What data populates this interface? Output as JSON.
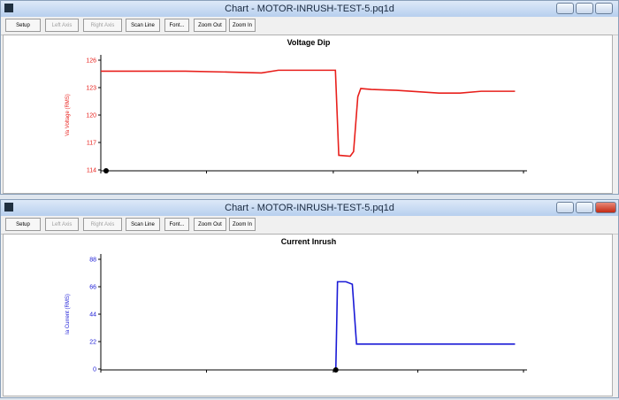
{
  "windows": [
    {
      "title": "Chart - MOTOR-INRUSH-TEST-5.pq1d",
      "buttons": [
        {
          "label": "Setup",
          "enabled": true
        },
        {
          "label": "Left Axis",
          "enabled": false
        },
        {
          "label": "Right Axis",
          "enabled": false
        },
        {
          "label": "Scan Line",
          "enabled": true
        },
        {
          "label": "Font...",
          "enabled": true
        },
        {
          "label": "Zoom Out",
          "enabled": true
        },
        {
          "label": "Zoom In",
          "enabled": true
        }
      ]
    },
    {
      "title": "Chart - MOTOR-INRUSH-TEST-5.pq1d",
      "buttons": [
        {
          "label": "Setup",
          "enabled": true
        },
        {
          "label": "Left Axis",
          "enabled": false
        },
        {
          "label": "Right Axis",
          "enabled": false
        },
        {
          "label": "Scan Line",
          "enabled": true
        },
        {
          "label": "Font...",
          "enabled": true
        },
        {
          "label": "Zoom Out",
          "enabled": true
        },
        {
          "label": "Zoom In",
          "enabled": true
        }
      ]
    }
  ],
  "chart_data": [
    {
      "type": "line",
      "title": "Voltage Dip",
      "y_label": "Va Voltage (RMS)",
      "ylim": [
        114,
        126
      ],
      "yticks": [
        114,
        117,
        120,
        123,
        126
      ],
      "xlim": [
        0,
        100
      ],
      "series": [
        {
          "name": "Va Voltage (RMS)",
          "color": "#e8201c",
          "x": [
            0,
            10,
            20,
            30,
            38,
            42,
            48,
            55.5,
            56.3,
            59,
            59.8,
            60.8,
            61.5,
            64,
            70,
            80,
            85,
            90,
            98
          ],
          "values": [
            124.8,
            124.8,
            124.8,
            124.7,
            124.6,
            124.9,
            124.9,
            124.9,
            115.6,
            115.5,
            116,
            122,
            122.9,
            122.8,
            122.7,
            122.4,
            122.4,
            122.6,
            122.6
          ]
        }
      ]
    },
    {
      "type": "line",
      "title": "Current Inrush",
      "y_label": "Ia Current (RMS)",
      "ylim": [
        0,
        88
      ],
      "yticks": [
        0,
        22,
        44,
        66,
        88
      ],
      "xlim": [
        0,
        100
      ],
      "series": [
        {
          "name": "Ia Current (RMS)",
          "color": "#1a1ad6",
          "x": [
            55.6,
            56,
            58,
            59.5,
            60.5,
            65,
            98
          ],
          "values": [
            0,
            70,
            70,
            68,
            20,
            20,
            20
          ]
        }
      ]
    }
  ]
}
